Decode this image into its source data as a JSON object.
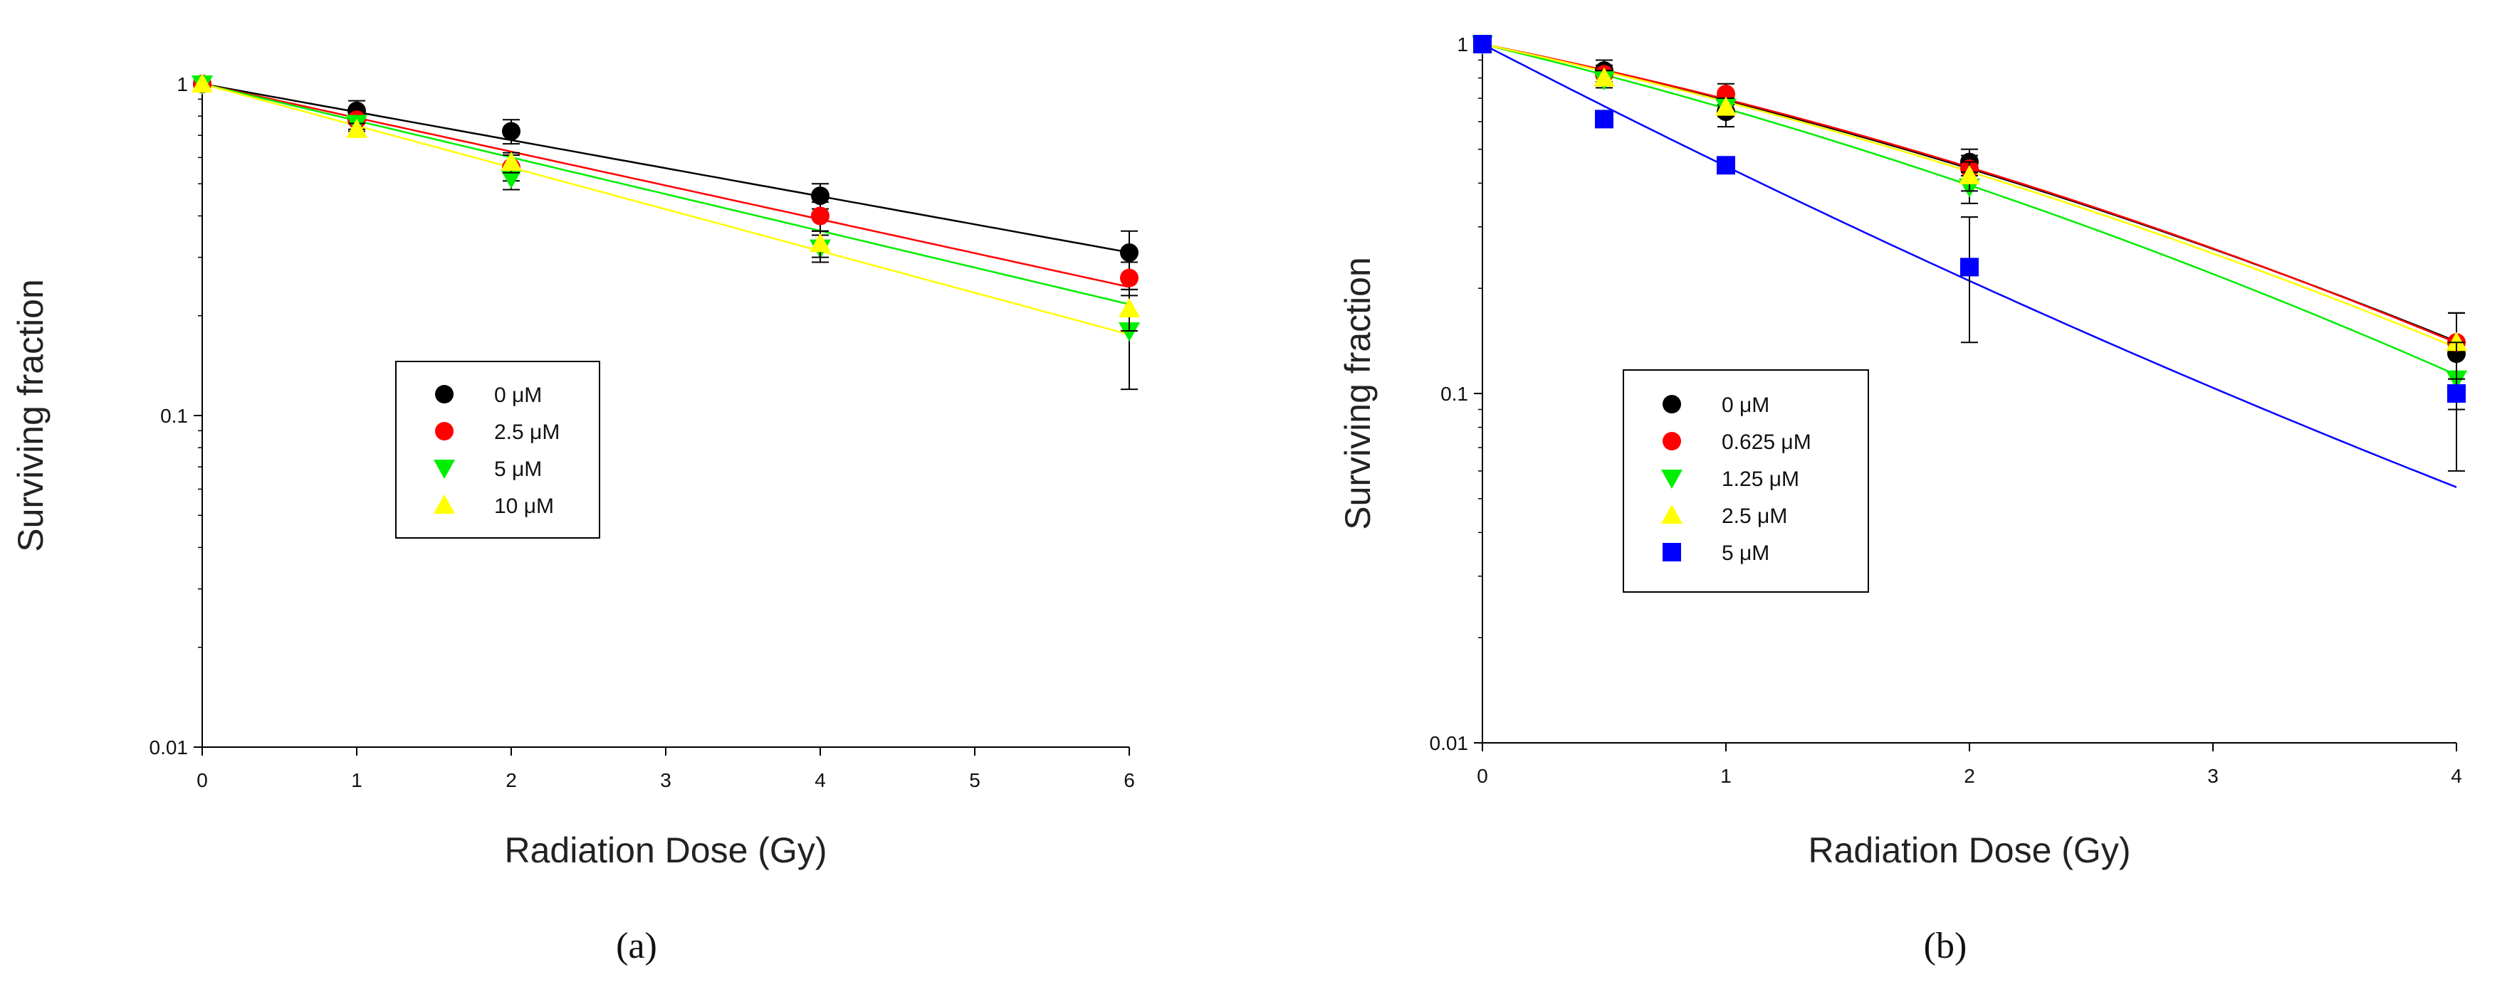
{
  "chart_data": [
    {
      "id": "a",
      "type": "scatter",
      "caption": "(a)",
      "xlabel": "Radiation Dose (Gy)",
      "ylabel": "Surviving fraction",
      "xlim": [
        0,
        6
      ],
      "ylim": [
        0.01,
        1
      ],
      "yscale": "log",
      "xticks": [
        "0",
        "1",
        "2",
        "3",
        "4",
        "5",
        "6"
      ],
      "yticks": [
        {
          "value": 0.01,
          "label": "0.01"
        },
        {
          "value": 0.1,
          "label": "0.1"
        },
        {
          "value": 1,
          "label": "1"
        }
      ],
      "grid": false,
      "legend_position": "center-left",
      "series": [
        {
          "name": "0 μM",
          "color": "#000000",
          "marker": "circle",
          "x": [
            0,
            1,
            2,
            4,
            6
          ],
          "y": [
            1.0,
            0.83,
            0.72,
            0.46,
            0.31
          ],
          "err": [
            0,
            0.06,
            0.06,
            0.04,
            0.05
          ],
          "fit": {
            "model": "LQ",
            "alpha": 0.195,
            "beta": 0
          }
        },
        {
          "name": "2.5 μM",
          "color": "#ff0000",
          "marker": "circle",
          "x": [
            0,
            1,
            2,
            4,
            6
          ],
          "y": [
            1.0,
            0.78,
            0.56,
            0.4,
            0.26
          ],
          "err": [
            0,
            0.05,
            0.05,
            0.04,
            0.03
          ],
          "fit": {
            "model": "LQ",
            "alpha": 0.235,
            "beta": 0
          }
        },
        {
          "name": "5 μM",
          "color": "#00ee00",
          "marker": "triangle-down",
          "x": [
            0,
            1,
            2,
            4,
            6
          ],
          "y": [
            1.0,
            0.76,
            0.52,
            0.32,
            0.18
          ],
          "err": [
            0,
            0.04,
            0.04,
            0.03,
            0.06
          ],
          "fit": {
            "model": "LQ",
            "alpha": 0.255,
            "beta": 0
          }
        },
        {
          "name": "10 μM",
          "color": "#ffff00",
          "marker": "triangle-up",
          "x": [
            0,
            1,
            2,
            4,
            6
          ],
          "y": [
            1.0,
            0.73,
            0.58,
            0.33,
            0.21
          ],
          "err": [
            0,
            0.03,
            0.04,
            0.03,
            0.03
          ],
          "fit": {
            "model": "LQ",
            "alpha": 0.29,
            "beta": 0
          }
        }
      ]
    },
    {
      "id": "b",
      "type": "scatter",
      "caption": "(b)",
      "xlabel": "Radiation Dose (Gy)",
      "ylabel": "Surviving fraction",
      "xlim": [
        0,
        4
      ],
      "ylim": [
        0.01,
        1
      ],
      "yscale": "log",
      "xticks": [
        "0",
        "1",
        "2",
        "3",
        "4"
      ],
      "yticks": [
        {
          "value": 0.01,
          "label": "0.01"
        },
        {
          "value": 0.1,
          "label": "0.1"
        },
        {
          "value": 1,
          "label": "1"
        }
      ],
      "grid": false,
      "legend_position": "center-left",
      "series": [
        {
          "name": "0 μM",
          "color": "#000000",
          "marker": "circle",
          "x": [
            0,
            0.5,
            1,
            2,
            4
          ],
          "y": [
            1.0,
            0.84,
            0.64,
            0.46,
            0.13
          ],
          "err": [
            0,
            0.06,
            0.06,
            0.04,
            0.04
          ],
          "fit": {
            "model": "LQ",
            "alpha": 0.33,
            "beta": 0.04
          }
        },
        {
          "name": "0.625 μM",
          "color": "#ff0000",
          "marker": "circle",
          "x": [
            0,
            0.5,
            1,
            2,
            4
          ],
          "y": [
            1.0,
            0.82,
            0.72,
            0.44,
            0.14
          ],
          "err": [
            0,
            0.05,
            0.05,
            0.04,
            0.03
          ],
          "fit": {
            "model": "LQ",
            "alpha": 0.32,
            "beta": 0.043
          }
        },
        {
          "name": "1.25 μM",
          "color": "#00ee00",
          "marker": "triangle-down",
          "x": [
            0,
            0.5,
            1,
            2,
            4
          ],
          "y": [
            1.0,
            0.79,
            0.66,
            0.39,
            0.11
          ],
          "err": [
            0,
            0.04,
            0.04,
            0.04,
            0.02
          ],
          "fit": {
            "model": "LQ",
            "alpha": 0.385,
            "beta": 0.04
          }
        },
        {
          "name": "2.5 μM",
          "color": "#ffff00",
          "marker": "triangle-up",
          "x": [
            0,
            0.5,
            1,
            2,
            4
          ],
          "y": [
            1.0,
            0.8,
            0.66,
            0.42,
            0.14
          ],
          "err": [
            0,
            0.04,
            0.04,
            0.04,
            0.03
          ],
          "fit": {
            "model": "LQ",
            "alpha": 0.34,
            "beta": 0.04
          }
        },
        {
          "name": "5 μM",
          "color": "#0000ff",
          "marker": "square",
          "x": [
            0,
            0.5,
            1,
            2,
            4
          ],
          "y": [
            1.0,
            0.61,
            0.45,
            0.23,
            0.1
          ],
          "err": [
            0,
            0.03,
            0.02,
            0.09,
            0.04
          ],
          "fit": {
            "model": "LQ",
            "alpha": 0.83,
            "beta": -0.025
          }
        }
      ]
    }
  ]
}
